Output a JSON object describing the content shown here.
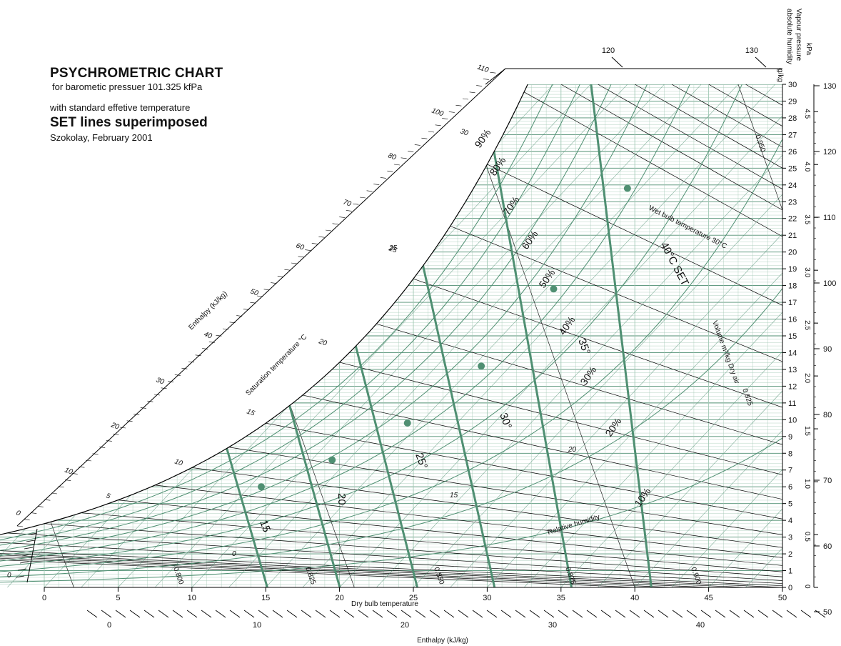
{
  "header": {
    "title": "PSYCHROMETRIC CHART",
    "subtitle": "for barometic pressuer 101.325 kfPa",
    "line3": "with standard effetive temperature",
    "line4": "SET lines superimposed",
    "line5": "Szokolay, February 2001"
  },
  "colors": {
    "grid": "#222222",
    "set": "#4f8f72",
    "minor": "#9fc7b3",
    "background": "#ffffff"
  },
  "chart_data": {
    "type": "psychrometric",
    "x_axis": {
      "label": "Dry bulb temperature",
      "range": [
        0,
        50
      ],
      "ticks": [
        0,
        5,
        10,
        15,
        20,
        25,
        30,
        35,
        40,
        45,
        50
      ]
    },
    "y_axis": {
      "label": "absolute humidity",
      "unit": "g/kg",
      "range": [
        0,
        30
      ],
      "ticks": [
        0,
        1,
        2,
        3,
        4,
        5,
        6,
        7,
        8,
        9,
        10,
        11,
        12,
        13,
        14,
        15,
        16,
        17,
        18,
        19,
        20,
        21,
        22,
        23,
        24,
        25,
        26,
        27,
        28,
        29,
        30
      ]
    },
    "vapour_pressure": {
      "label": "Vapour pressure",
      "unit": "kPa",
      "ticks": [
        "0",
        "0.5",
        "1.0",
        "1.5",
        "2.0",
        "2.5",
        "3.0",
        "3.5",
        "4.0",
        "4.5"
      ],
      "values": [
        0,
        0.5,
        1.0,
        1.5,
        2.0,
        2.5,
        3.0,
        3.5,
        4.0,
        4.5
      ]
    },
    "enthalpy_right": {
      "unit": "kPa",
      "ticks": [
        50,
        60,
        70,
        80,
        90,
        100,
        110,
        120,
        130
      ]
    },
    "enthalpy_bottom": {
      "label": "Enthalpy (kJ/kg)",
      "ticks": [
        0,
        10,
        20,
        30,
        40
      ]
    },
    "enthalpy_top": {
      "ticks": [
        120,
        130
      ]
    },
    "enthalpy_diagonal": {
      "label": "Enthalpy (kJ/kg)",
      "ticks": [
        0,
        10,
        20,
        30,
        40,
        50,
        60,
        70,
        80,
        100,
        110
      ]
    },
    "saturation_temperature": {
      "label": "Saturation temperature °C",
      "ticks": [
        5,
        10,
        15,
        20,
        25,
        30
      ]
    },
    "relative_humidity": {
      "label": "Relative humidity",
      "curves": [
        "10%",
        "20%",
        "30%",
        "40%",
        "50%",
        "60%",
        "70%",
        "80%",
        "90%"
      ],
      "values": [
        10,
        20,
        30,
        40,
        50,
        60,
        70,
        80,
        90
      ]
    },
    "wet_bulb": {
      "label": "Wet bulb temperature 30°C",
      "ticks": [
        0,
        15,
        20,
        25
      ]
    },
    "volume": {
      "label": "Volume m³/kg Dry air",
      "ticks": [
        "0.800",
        "0.825",
        "0.850",
        "0.875",
        "0.900",
        "0.925",
        "0.950"
      ],
      "values": [
        0.8,
        0.825,
        0.85,
        0.875,
        0.9,
        0.925,
        0.95
      ]
    },
    "set_lines": {
      "labels": [
        "15",
        "20",
        "25°",
        "30°",
        "35°",
        "40°C SET"
      ],
      "values": [
        15,
        20,
        25,
        30,
        35,
        40
      ],
      "points": [
        {
          "set": 15,
          "t": 14.7,
          "w": 6.0
        },
        {
          "set": 20,
          "t": 19.5,
          "w": 7.6
        },
        {
          "set": 25,
          "t": 24.6,
          "w": 9.8
        },
        {
          "set": 30,
          "t": 29.6,
          "w": 13.2
        },
        {
          "set": 35,
          "t": 34.5,
          "w": 17.8
        },
        {
          "set": 40,
          "t": 39.5,
          "w": 23.8
        }
      ]
    }
  }
}
